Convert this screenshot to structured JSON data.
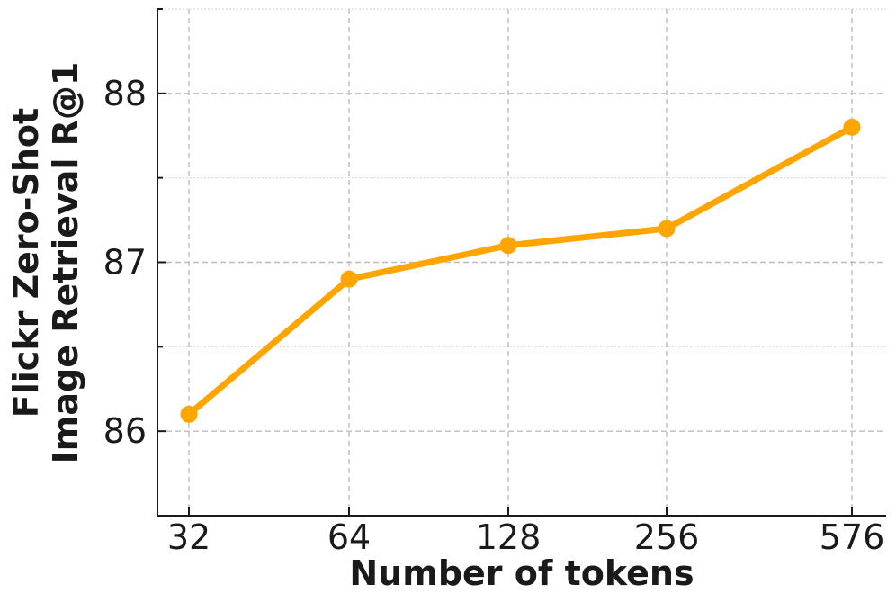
{
  "chart_data": {
    "type": "line",
    "x_categories": [
      "32",
      "64",
      "128",
      "256",
      "576"
    ],
    "series": [
      {
        "values": [
          86.1,
          86.9,
          87.1,
          87.2,
          87.8
        ],
        "color": "#FFA500"
      }
    ],
    "xlabel": "Number of tokens",
    "ylabel_lines": [
      "Flickr Zero-Shot",
      "Image Retrieval R@1"
    ],
    "ylim": [
      85.5,
      88.5
    ],
    "y_major_ticks": [
      86,
      87,
      88
    ],
    "y_minor_ticks": [
      85.5,
      86.5,
      87.5,
      88.5
    ],
    "grid": true
  }
}
